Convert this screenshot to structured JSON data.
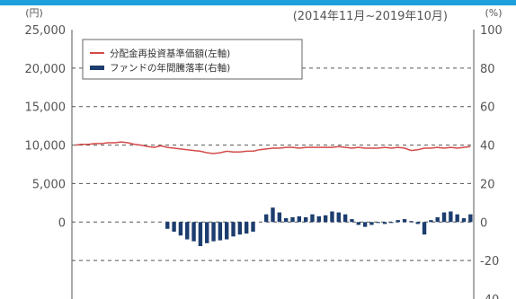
{
  "chart_data": {
    "type": "bar+line",
    "period_label": "(2014年11月~2019年10月)",
    "left_axis": {
      "unit": "(円)",
      "ticks": [
        "25,000",
        "20,000",
        "15,000",
        "10,000",
        "5,000",
        "0"
      ],
      "range": [
        -10000,
        25000
      ]
    },
    "right_axis": {
      "unit": "(%)",
      "ticks": [
        "100",
        "80",
        "60",
        "40",
        "20",
        "0",
        "-20",
        "-40"
      ],
      "range": [
        -40,
        100
      ]
    },
    "grid": "dashed",
    "legend_position": "top-left",
    "series": [
      {
        "name": "分配金再投資基準価額(左軸)",
        "type": "line",
        "axis": "left",
        "color": "#d44a4a",
        "values": [
          10000,
          10100,
          10100,
          10200,
          10200,
          10300,
          10300,
          10400,
          10300,
          10100,
          10000,
          9800,
          9700,
          9900,
          9700,
          9600,
          9500,
          9400,
          9300,
          9200,
          9000,
          8900,
          9000,
          9200,
          9100,
          9100,
          9200,
          9200,
          9400,
          9500,
          9600,
          9600,
          9700,
          9700,
          9600,
          9700,
          9700,
          9700,
          9700,
          9700,
          9800,
          9700,
          9600,
          9700,
          9600,
          9600,
          9600,
          9700,
          9600,
          9700,
          9600,
          9300,
          9400,
          9600,
          9600,
          9700,
          9600,
          9700,
          9600,
          9700,
          9800
        ]
      },
      {
        "name": "ファンドの年間騰落率(右軸)",
        "type": "bar",
        "axis": "right",
        "color": "#1c3d6e",
        "values": [
          0,
          0,
          0,
          0,
          0,
          0,
          0,
          0,
          0,
          0,
          0,
          0,
          0,
          0,
          -3.5,
          -5,
          -7,
          -9,
          -10,
          -12.5,
          -11,
          -10,
          -9.5,
          -9,
          -7.5,
          -6.5,
          -6,
          -5,
          0,
          4,
          7.5,
          5,
          2,
          2.5,
          3,
          2.5,
          4,
          3,
          3.5,
          5.5,
          5,
          4,
          1.5,
          -1.5,
          -2.5,
          -1.5,
          -0.5,
          -1,
          -0.5,
          1,
          1.5,
          0.5,
          -1,
          -6.5,
          1,
          2.5,
          5,
          5.5,
          4,
          2,
          4
        ]
      }
    ]
  }
}
